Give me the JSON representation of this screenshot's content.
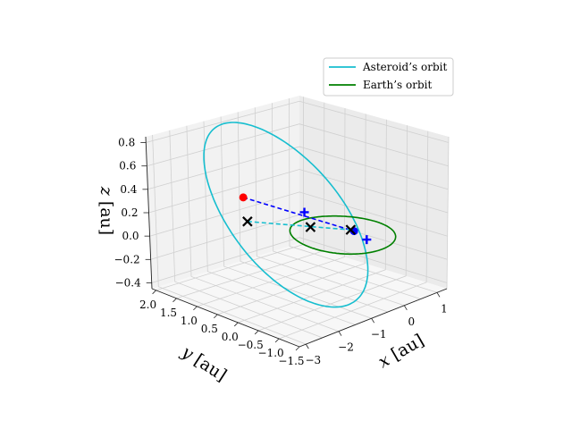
{
  "chart_data": {
    "type": "line",
    "subtype": "3d",
    "title": "",
    "xlabel": "$x$ [au]",
    "ylabel": "$y$ [au]",
    "zlabel": "$z$ [au]",
    "xlabel_text": {
      "var": "x",
      "unit": "[au]"
    },
    "ylabel_text": {
      "var": "y",
      "unit": "[au]"
    },
    "zlabel_text": {
      "var": "z",
      "unit": "[au]"
    },
    "xlim": [
      -3.2,
      1.3
    ],
    "ylim": [
      -1.5,
      2.1
    ],
    "zlim": [
      -0.45,
      0.85
    ],
    "xticks": [
      "−3",
      "−2",
      "−1",
      "0",
      "1"
    ],
    "yticks": [
      "2.0",
      "1.5",
      "1.0",
      "0.5",
      "0.0",
      "−0.5",
      "−1.0",
      "−1.5"
    ],
    "zticks": [
      "0.8",
      "0.6",
      "0.4",
      "0.2",
      "0.0",
      "−0.2",
      "−0.4"
    ],
    "grid": true,
    "legend_position": "top-right",
    "series": [
      {
        "name": "Asteroid’s orbit",
        "color": "#17becf",
        "style": "solid",
        "center": [
          -1.0,
          0.55,
          0.2
        ],
        "radius": 1.6,
        "inclination_deg": 22
      },
      {
        "name": "Earth’s orbit",
        "color": "#008000",
        "style": "solid",
        "center": [
          0.0,
          0.0,
          0.0
        ],
        "radius": 1.0
      }
    ],
    "segments": [
      {
        "color": "#0000ff",
        "style": "dashed",
        "from": [
          -2.6,
          0.3,
          0.6
        ],
        "to": [
          0.34,
          0.0,
          -0.01
        ]
      },
      {
        "color": "#17becf",
        "style": "dashed",
        "from": [
          -2.55,
          0.25,
          0.38
        ],
        "to": [
          0.3,
          0.05,
          0.0
        ]
      }
    ],
    "points": [
      {
        "marker": "dot",
        "color": "#ff0000",
        "xyz": [
          -2.6,
          0.3,
          0.6
        ]
      },
      {
        "marker": "dot",
        "color": "#0000ff",
        "xyz": [
          0.34,
          0.0,
          -0.01
        ]
      },
      {
        "marker": "x",
        "color": "#000000",
        "xyz": [
          -2.55,
          0.25,
          0.38
        ]
      },
      {
        "marker": "x",
        "color": "#000000",
        "xyz": [
          -0.85,
          0.1,
          0.15
        ]
      },
      {
        "marker": "x",
        "color": "#000000",
        "xyz": [
          0.3,
          0.05,
          0.0
        ]
      },
      {
        "marker": "plus",
        "color": "#0000ff",
        "xyz": [
          -0.1,
          0.85,
          0.1
        ]
      },
      {
        "marker": "plus",
        "color": "#0000ff",
        "xyz": [
          0.35,
          -0.3,
          -0.05
        ]
      }
    ]
  }
}
